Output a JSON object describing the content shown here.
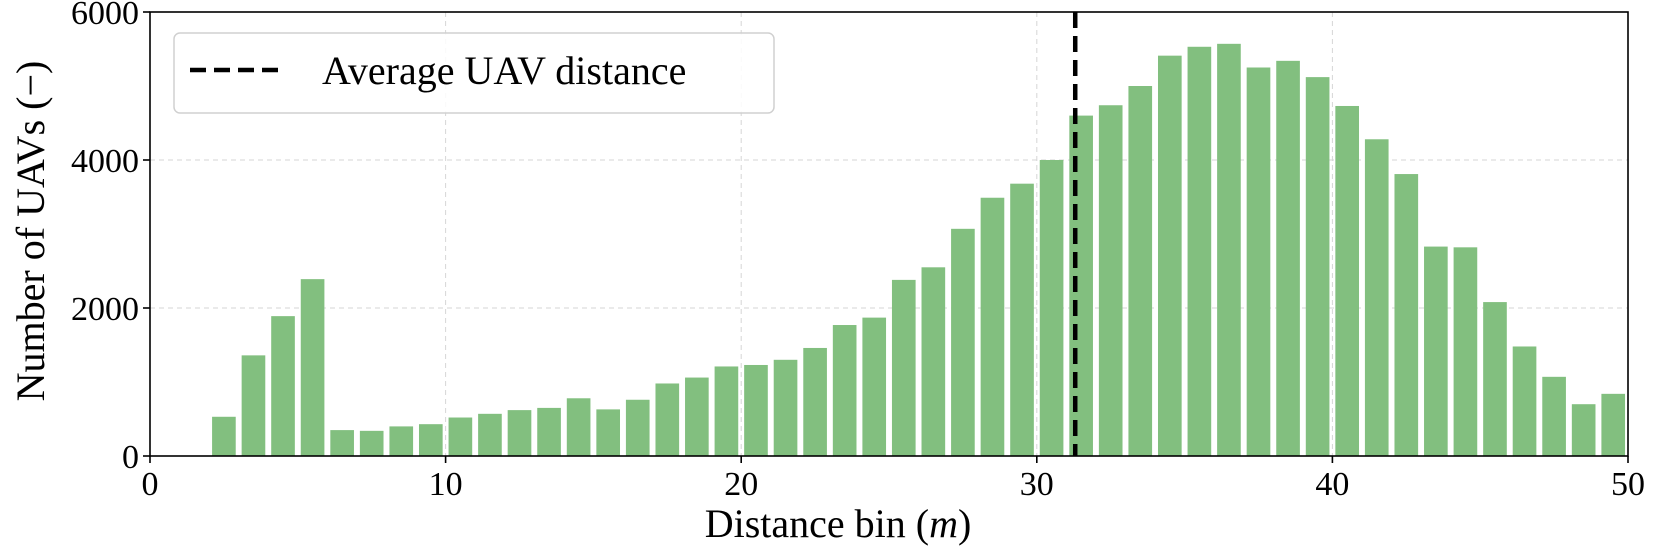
{
  "chart_data": {
    "type": "bar",
    "title": "",
    "xlabel": "Distance bin (",
    "xlabel_unit": "m",
    "xlabel_close": ")",
    "ylabel": "Number of UAVs (−)",
    "xlim": [
      0,
      50
    ],
    "ylim": [
      0,
      6000
    ],
    "xticks": [
      0,
      10,
      20,
      30,
      40,
      50
    ],
    "yticks": [
      0,
      2000,
      4000,
      6000
    ],
    "grid": true,
    "bar_color": "#82bf7f",
    "x": [
      2.5,
      3.5,
      4.5,
      5.5,
      6.5,
      7.5,
      8.5,
      9.5,
      10.5,
      11.5,
      12.5,
      13.5,
      14.5,
      15.5,
      16.5,
      17.5,
      18.5,
      19.5,
      20.5,
      21.5,
      22.5,
      23.5,
      24.5,
      25.5,
      26.5,
      27.5,
      28.5,
      29.5,
      30.5,
      31.5,
      32.5,
      33.5,
      34.5,
      35.5,
      36.5,
      37.5,
      38.5,
      39.5,
      40.5,
      41.5,
      42.5,
      43.5,
      44.5,
      45.5,
      46.5,
      47.5,
      48.5,
      49.5
    ],
    "values": [
      530,
      1360,
      1890,
      2390,
      350,
      340,
      400,
      430,
      520,
      570,
      620,
      650,
      780,
      630,
      760,
      980,
      1060,
      1210,
      1230,
      1300,
      1460,
      1770,
      1870,
      2380,
      2550,
      3070,
      3490,
      3680,
      4000,
      4600,
      4740,
      5000,
      5410,
      5530,
      5570,
      5250,
      5340,
      5120,
      4730,
      4280,
      3810,
      2830,
      2820,
      2080,
      1480,
      1070,
      700,
      840
    ],
    "reference_line": {
      "label": "Average UAV distance",
      "x": 31.3,
      "style": "dashed",
      "color": "#000000"
    },
    "legend": {
      "placement": "top-left",
      "entries": [
        "Average UAV distance"
      ]
    }
  }
}
